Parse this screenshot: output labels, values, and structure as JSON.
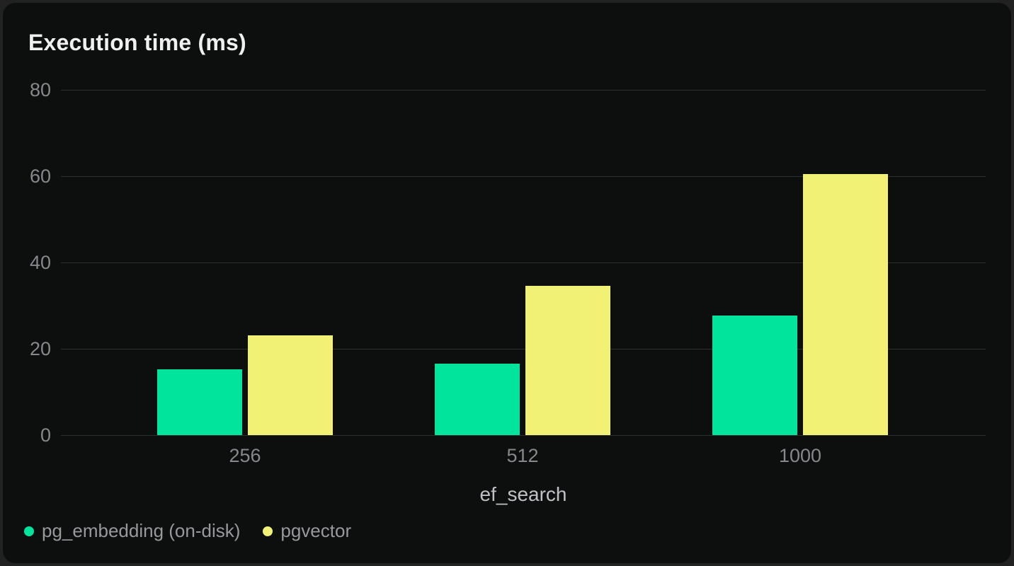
{
  "chart_data": {
    "type": "bar",
    "title": "Execution time (ms)",
    "xlabel": "ef_search",
    "ylabel": "",
    "categories": [
      "256",
      "512",
      "1000"
    ],
    "series": [
      {
        "name": "pg_embedding (on-disk)",
        "color": "#00e59b",
        "values": [
          15.2,
          16.5,
          27.7
        ]
      },
      {
        "name": "pgvector",
        "color": "#f0f175",
        "values": [
          23.1,
          34.6,
          60.5
        ]
      }
    ],
    "ylim": [
      0,
      80
    ],
    "yticks": [
      0,
      20,
      40,
      60,
      80
    ],
    "grid": "horizontal",
    "legend_position": "bottom-left",
    "background": "#0d0f0e",
    "gridline_color": "#2e302f"
  }
}
